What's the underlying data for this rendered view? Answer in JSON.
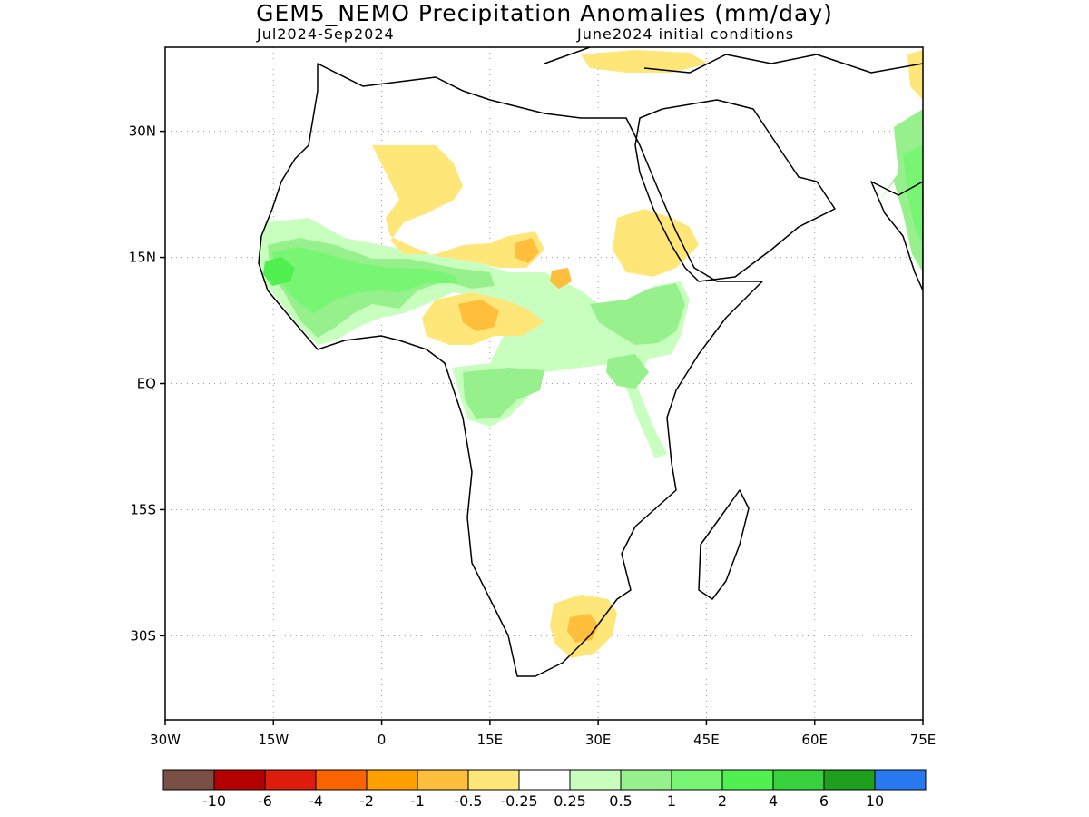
{
  "header": {
    "title": "GEM5_NEMO Precipitation Anomalies (mm/day)",
    "period": "Jul2024-Sep2024",
    "initial_conditions": "June2024 initial conditions"
  },
  "map": {
    "region": "Africa",
    "x_ticks": [
      {
        "label": "30W",
        "lon": -30
      },
      {
        "label": "15W",
        "lon": -15
      },
      {
        "label": "0",
        "lon": 0
      },
      {
        "label": "15E",
        "lon": 15
      },
      {
        "label": "30E",
        "lon": 30
      },
      {
        "label": "45E",
        "lon": 45
      },
      {
        "label": "60E",
        "lon": 60
      },
      {
        "label": "75E",
        "lon": 75
      }
    ],
    "y_ticks": [
      {
        "label": "30N",
        "lat": 30
      },
      {
        "label": "15N",
        "lat": 15
      },
      {
        "label": "EQ",
        "lat": 0
      },
      {
        "label": "15S",
        "lat": -15
      },
      {
        "label": "30S",
        "lat": -30
      }
    ],
    "lon_range": [
      -30,
      75
    ],
    "lat_range": [
      -40,
      40
    ],
    "grid": "dotted"
  },
  "colorbar": {
    "colors": [
      "#7a5046",
      "#b40000",
      "#de1c0c",
      "#fa6400",
      "#ffa000",
      "#ffbe3c",
      "#ffe678",
      "#ffffff",
      "#c8ffbe",
      "#96f08c",
      "#78f573",
      "#50f050",
      "#37d23c",
      "#1ea01e",
      "#2878f0"
    ],
    "labels": [
      "-10",
      "-6",
      "-4",
      "-2",
      "-1",
      "-0.5",
      "-0.25",
      "0.25",
      "0.5",
      "1",
      "2",
      "4",
      "6",
      "10"
    ]
  },
  "anomaly_colors": {
    "dry_light": "#ffe678",
    "dry_medium": "#ffbe3c",
    "dry_strong": "#ffa000",
    "wet_light": "#c8ffbe",
    "wet_medium": "#96f08c",
    "wet_strong": "#50f050"
  }
}
